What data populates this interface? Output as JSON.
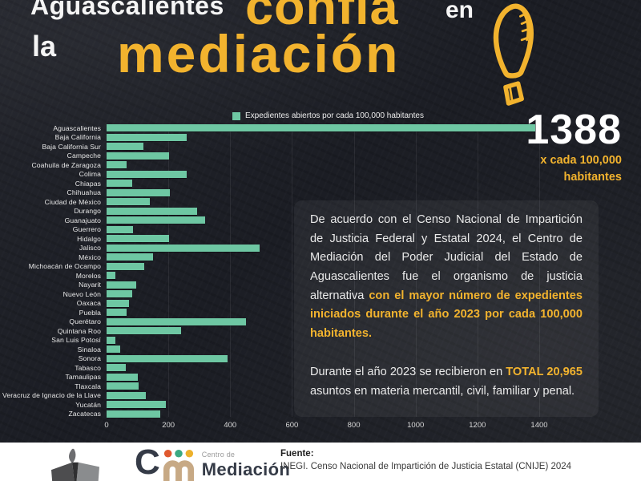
{
  "title": {
    "white1": "Aguascalientes",
    "yellow1": "confía",
    "white2": "en",
    "white3": "la",
    "yellow2": "mediación"
  },
  "big_stat": {
    "value": "1388",
    "caption_line1": "x cada 100,000",
    "caption_line2": "habitantes"
  },
  "chart_data": {
    "type": "bar",
    "orientation": "horizontal",
    "legend": "Expedientes abiertos por cada 100,000 habitantes",
    "legend_position": "top",
    "grid": true,
    "xlim": [
      0,
      1400
    ],
    "xticks": [
      0,
      200,
      400,
      600,
      800,
      1000,
      1200,
      1400
    ],
    "bar_color": "#6ec7a3",
    "categories": [
      "Aguascalientes",
      "Baja California",
      "Baja California Sur",
      "Campeche",
      "Coahuila de Zaragoza",
      "Colima",
      "Chiapas",
      "Chihuahua",
      "Ciudad de México",
      "Durango",
      "Guanajuato",
      "Guerrero",
      "Hidalgo",
      "Jalisco",
      "México",
      "Michoacán de Ocampo",
      "Morelos",
      "Nayarit",
      "Nuevo León",
      "Oaxaca",
      "Puebla",
      "Querétaro",
      "Quintana Roo",
      "San Luis Potosí",
      "Sinaloa",
      "Sonora",
      "Tabasco",
      "Tamaulipas",
      "Tlaxcala",
      "Veracruz de Ignacio de la Llave",
      "Yucatán",
      "Zacatecas"
    ],
    "values": [
      1388,
      260,
      120,
      202,
      66,
      260,
      82,
      204,
      140,
      292,
      318,
      86,
      202,
      495,
      150,
      122,
      28,
      96,
      84,
      72,
      64,
      450,
      240,
      28,
      45,
      392,
      62,
      100,
      104,
      126,
      192,
      174
    ]
  },
  "info_panel": {
    "p1": [
      {
        "text": "De acuerdo con el Censo Nacional de Impartición de Justicia Federal y Estatal 2024, el Centro de Mediación del Poder Judicial del Estado de Aguascalientes fue el organismo de justicia alternativa ",
        "highlight": false
      },
      {
        "text": "con el mayor número de expedientes iniciados durante el año 2023 por cada 100,000 habitantes.",
        "highlight": true
      }
    ],
    "p2": [
      {
        "text": "Durante el año 2023 se recibieron en ",
        "highlight": false
      },
      {
        "text": "TOTAL 20,965",
        "highlight": true
      },
      {
        "text": " asuntos en materia mercantil, civil, familiar y penal.",
        "highlight": false
      }
    ]
  },
  "footer": {
    "logo_letter": "C",
    "logo_small": "Centro de",
    "logo_big": "Mediación",
    "source_label": "Fuente:",
    "source_text": "INEGI. Censo Nacional de Impartición de Justicia Estatal (CNIJE) 2024"
  },
  "colors": {
    "yellow": "#f2b32e",
    "bar": "#6ec7a3",
    "background": "#1e2027",
    "panel": "#2c2e36",
    "footer_navy": "#353b47",
    "dot_orange": "#e0592e",
    "dot_green": "#3ba982",
    "dot_yellow": "#edb12c",
    "logo_tan": "#c7a985"
  }
}
